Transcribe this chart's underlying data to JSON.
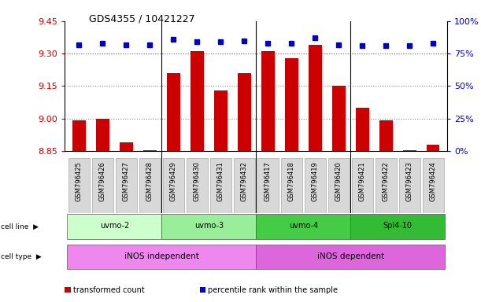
{
  "title": "GDS4355 / 10421227",
  "samples": [
    "GSM796425",
    "GSM796426",
    "GSM796427",
    "GSM796428",
    "GSM796429",
    "GSM796430",
    "GSM796431",
    "GSM796432",
    "GSM796417",
    "GSM796418",
    "GSM796419",
    "GSM796420",
    "GSM796421",
    "GSM796422",
    "GSM796423",
    "GSM796424"
  ],
  "transformed_count": [
    8.99,
    9.0,
    8.89,
    8.855,
    9.21,
    9.31,
    9.13,
    9.21,
    9.31,
    9.28,
    9.34,
    9.15,
    9.05,
    8.99,
    8.855,
    8.88
  ],
  "percentile_rank": [
    82,
    83,
    82,
    82,
    86,
    84,
    84,
    85,
    83,
    83,
    87,
    82,
    81,
    81,
    81,
    83
  ],
  "cell_line_groups": [
    {
      "label": "uvmo-2",
      "start": 0,
      "end": 3,
      "color": "#ccffcc"
    },
    {
      "label": "uvmo-3",
      "start": 4,
      "end": 7,
      "color": "#99ee99"
    },
    {
      "label": "uvmo-4",
      "start": 8,
      "end": 11,
      "color": "#44cc44"
    },
    {
      "label": "Spl4-10",
      "start": 12,
      "end": 15,
      "color": "#33bb33"
    }
  ],
  "cell_type_groups": [
    {
      "label": "iNOS independent",
      "start": 0,
      "end": 7,
      "color": "#ee88ee"
    },
    {
      "label": "iNOS dependent",
      "start": 8,
      "end": 15,
      "color": "#dd66dd"
    }
  ],
  "ylim_left": [
    8.85,
    9.45
  ],
  "ylim_right": [
    0,
    100
  ],
  "yticks_left": [
    8.85,
    9.0,
    9.15,
    9.3,
    9.45
  ],
  "yticks_right": [
    0,
    25,
    50,
    75,
    100
  ],
  "bar_color": "#cc0000",
  "dot_color": "#0000cc",
  "grid_color": "#888888",
  "bar_width": 0.55,
  "legend_items": [
    {
      "color": "#cc0000",
      "label": "transformed count"
    },
    {
      "color": "#0000cc",
      "label": "percentile rank within the sample"
    }
  ]
}
